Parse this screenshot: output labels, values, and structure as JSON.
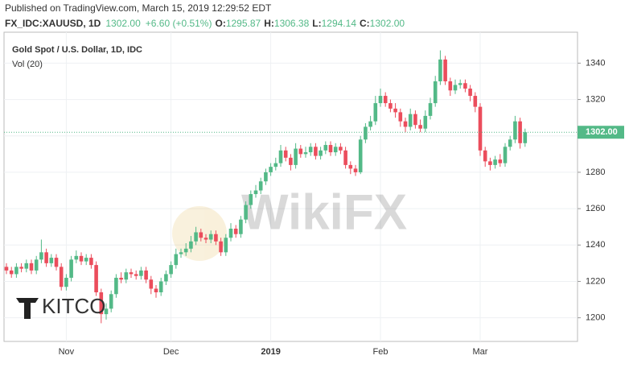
{
  "header": {
    "published": "Published on TradingView.com, March 15, 2019 12:29:52 EDT",
    "symbol": "FX_IDC:XAUUSD, 1D",
    "last": "1302.00",
    "change": "+6.60 (+0.51%)",
    "ohlc": [
      {
        "label": "O:",
        "value": "1295.87"
      },
      {
        "label": "H:",
        "value": "1306.38"
      },
      {
        "label": "L:",
        "value": "1294.14"
      },
      {
        "label": "C:",
        "value": "1302.00"
      }
    ]
  },
  "logo": "KITCO",
  "watermark": "WikiFX",
  "chart_data": {
    "type": "candlestick",
    "title": "Gold Spot / U.S. Dollar, 1D, IDC",
    "subtitle": "Vol (20)",
    "up_color": "#53b987",
    "down_color": "#eb4d5c",
    "grid": true,
    "ylim": [
      1187,
      1357
    ],
    "yticks": [
      1200,
      1220,
      1240,
      1260,
      1280,
      1300,
      1320,
      1340
    ],
    "last_price": {
      "value": 1302,
      "label": "1302.00"
    },
    "categories": [
      null,
      null,
      null,
      null,
      null,
      null,
      null,
      null,
      null,
      null,
      null,
      null,
      "Nov",
      null,
      null,
      null,
      null,
      null,
      null,
      null,
      null,
      null,
      null,
      null,
      null,
      null,
      null,
      null,
      null,
      null,
      null,
      null,
      null,
      "Dec",
      null,
      null,
      null,
      null,
      null,
      null,
      null,
      null,
      null,
      null,
      null,
      null,
      null,
      null,
      null,
      null,
      null,
      null,
      null,
      "2019",
      null,
      null,
      null,
      null,
      null,
      null,
      null,
      null,
      null,
      null,
      null,
      null,
      null,
      null,
      null,
      null,
      null,
      null,
      null,
      null,
      null,
      "Feb",
      null,
      null,
      null,
      null,
      null,
      null,
      null,
      null,
      null,
      null,
      null,
      null,
      null,
      null,
      null,
      null,
      null,
      null,
      null,
      "Mar",
      null,
      null,
      null,
      null,
      null,
      null,
      null,
      null,
      null
    ],
    "open": [
      1228,
      1226,
      1224,
      1228,
      1227,
      1230,
      1226,
      1232,
      1236,
      1230,
      1233,
      1228,
      1217,
      1222,
      1232,
      1234,
      1231,
      1233,
      1229,
      1214,
      1202,
      1205,
      1213,
      1222,
      1221,
      1225,
      1224,
      1223,
      1226,
      1221,
      1216,
      1214,
      1220,
      1224,
      1229,
      1235,
      1236,
      1238,
      1242,
      1247,
      1244,
      1243,
      1246,
      1242,
      1236,
      1244,
      1249,
      1246,
      1254,
      1262,
      1268,
      1270,
      1275,
      1280,
      1283,
      1285,
      1292,
      1288,
      1284,
      1293,
      1290,
      1291,
      1294,
      1289,
      1292,
      1295,
      1291,
      1294,
      1292,
      1284,
      1282,
      1280,
      1298,
      1305,
      1308,
      1318,
      1322,
      1318,
      1315,
      1313,
      1308,
      1305,
      1312,
      1306,
      1304,
      1311,
      1318,
      1330,
      1342,
      1330,
      1325,
      1328,
      1329,
      1326,
      1322,
      1316,
      1292,
      1286,
      1284,
      1287,
      1285,
      1294,
      1298,
      1308,
      1296
    ],
    "high": [
      1230,
      1228,
      1230,
      1230,
      1232,
      1232,
      1234,
      1243,
      1238,
      1235,
      1235,
      1230,
      1224,
      1234,
      1237,
      1236,
      1235,
      1235,
      1231,
      1216,
      1208,
      1215,
      1224,
      1225,
      1227,
      1227,
      1226,
      1228,
      1228,
      1223,
      1218,
      1222,
      1226,
      1231,
      1238,
      1238,
      1241,
      1245,
      1250,
      1249,
      1246,
      1248,
      1248,
      1244,
      1246,
      1252,
      1251,
      1256,
      1264,
      1270,
      1273,
      1277,
      1282,
      1285,
      1288,
      1295,
      1294,
      1290,
      1296,
      1295,
      1294,
      1296,
      1296,
      1294,
      1297,
      1297,
      1296,
      1296,
      1294,
      1286,
      1284,
      1300,
      1307,
      1311,
      1322,
      1326,
      1324,
      1320,
      1318,
      1315,
      1310,
      1315,
      1314,
      1309,
      1314,
      1321,
      1333,
      1347,
      1344,
      1332,
      1331,
      1331,
      1331,
      1328,
      1324,
      1318,
      1294,
      1288,
      1289,
      1290,
      1296,
      1300,
      1311,
      1310,
      1304
    ],
    "low": [
      1224,
      1222,
      1222,
      1225,
      1225,
      1224,
      1224,
      1230,
      1228,
      1228,
      1226,
      1215,
      1215,
      1220,
      1230,
      1229,
      1229,
      1227,
      1212,
      1197,
      1199,
      1203,
      1211,
      1219,
      1219,
      1222,
      1221,
      1221,
      1219,
      1213,
      1211,
      1212,
      1218,
      1222,
      1227,
      1233,
      1234,
      1236,
      1240,
      1242,
      1241,
      1241,
      1240,
      1234,
      1234,
      1242,
      1244,
      1244,
      1252,
      1260,
      1266,
      1268,
      1273,
      1278,
      1281,
      1283,
      1286,
      1281,
      1282,
      1288,
      1288,
      1289,
      1287,
      1287,
      1290,
      1289,
      1289,
      1290,
      1282,
      1279,
      1278,
      1279,
      1296,
      1303,
      1306,
      1316,
      1316,
      1313,
      1310,
      1305,
      1302,
      1303,
      1304,
      1302,
      1302,
      1309,
      1316,
      1328,
      1328,
      1322,
      1323,
      1326,
      1324,
      1319,
      1313,
      1289,
      1283,
      1281,
      1282,
      1283,
      1283,
      1292,
      1296,
      1293,
      1294
    ],
    "close": [
      1226,
      1224,
      1228,
      1227,
      1230,
      1226,
      1232,
      1236,
      1230,
      1233,
      1228,
      1217,
      1222,
      1232,
      1234,
      1231,
      1233,
      1229,
      1214,
      1202,
      1205,
      1213,
      1222,
      1221,
      1225,
      1224,
      1223,
      1226,
      1221,
      1216,
      1214,
      1220,
      1224,
      1229,
      1235,
      1236,
      1238,
      1242,
      1247,
      1244,
      1243,
      1246,
      1242,
      1236,
      1244,
      1249,
      1246,
      1254,
      1262,
      1268,
      1270,
      1275,
      1280,
      1283,
      1285,
      1292,
      1288,
      1284,
      1293,
      1290,
      1291,
      1294,
      1289,
      1292,
      1295,
      1291,
      1294,
      1292,
      1284,
      1282,
      1280,
      1298,
      1305,
      1308,
      1318,
      1322,
      1318,
      1315,
      1313,
      1308,
      1305,
      1312,
      1306,
      1304,
      1311,
      1318,
      1330,
      1342,
      1330,
      1325,
      1328,
      1329,
      1326,
      1322,
      1316,
      1292,
      1286,
      1284,
      1287,
      1285,
      1294,
      1298,
      1308,
      1296,
      1302
    ]
  }
}
